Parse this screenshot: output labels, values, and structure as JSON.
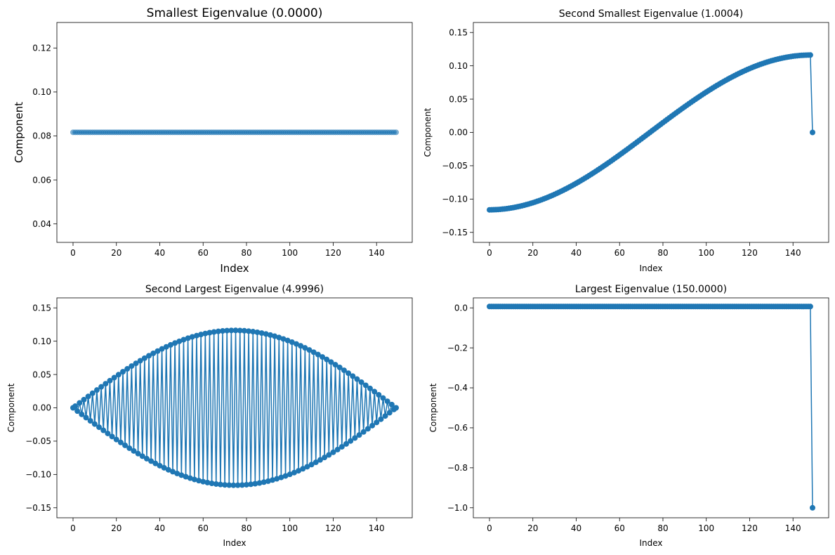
{
  "chart_data": [
    {
      "type": "line",
      "title": "Smallest Eigenvalue (0.0000)",
      "xlabel": "Index",
      "ylabel": "Component",
      "xlim": [
        -7.45,
        156.45
      ],
      "ylim": [
        0.0316,
        0.1316
      ],
      "xticks": [
        0,
        20,
        40,
        60,
        80,
        100,
        120,
        140
      ],
      "yticks": [
        0.04,
        0.06,
        0.08,
        0.1,
        0.12
      ],
      "ytick_labels": [
        "0.04",
        "0.06",
        "0.08",
        "0.10",
        "0.12"
      ],
      "line_color": "#1f77b4",
      "marker": "circle",
      "alpha": 0.6,
      "series": [
        {
          "n": 150,
          "generator": "constant",
          "value": 0.08165
        }
      ]
    },
    {
      "type": "line",
      "title": "Second Smallest Eigenvalue (1.0004)",
      "xlabel": "Index",
      "ylabel": "Component",
      "xlim": [
        -7.45,
        156.45
      ],
      "ylim": [
        -0.165,
        0.165
      ],
      "xticks": [
        0,
        20,
        40,
        60,
        80,
        100,
        120,
        140
      ],
      "yticks": [
        -0.15,
        -0.1,
        -0.05,
        0.0,
        0.05,
        0.1,
        0.15
      ],
      "ytick_labels": [
        "−0.15",
        "−0.10",
        "−0.05",
        "0.00",
        "0.05",
        "0.10",
        "0.15"
      ],
      "line_color": "#1f77b4",
      "marker": "circle",
      "alpha": 1,
      "series": [
        {
          "n": 150,
          "generator": "half-cosine",
          "amplitude": 0.1162,
          "last_value": 0.0
        }
      ]
    },
    {
      "type": "line",
      "title": "Second Largest Eigenvalue (4.9996)",
      "xlabel": "Index",
      "ylabel": "Component",
      "xlim": [
        -7.45,
        156.45
      ],
      "ylim": [
        -0.165,
        0.165
      ],
      "xticks": [
        0,
        20,
        40,
        60,
        80,
        100,
        120,
        140
      ],
      "yticks": [
        -0.15,
        -0.1,
        -0.05,
        0.0,
        0.05,
        0.1,
        0.15
      ],
      "ytick_labels": [
        "−0.15",
        "−0.10",
        "−0.05",
        "0.00",
        "0.05",
        "0.10",
        "0.15"
      ],
      "line_color": "#1f77b4",
      "marker": "circle",
      "alpha": 1,
      "series": [
        {
          "n": 150,
          "generator": "alternating-sine",
          "amplitude": 0.1162
        }
      ]
    },
    {
      "type": "line",
      "title": "Largest Eigenvalue (150.0000)",
      "xlabel": "Index",
      "ylabel": "Component",
      "xlim": [
        -7.45,
        156.45
      ],
      "ylim": [
        -1.05,
        0.05
      ],
      "xticks": [
        0,
        20,
        40,
        60,
        80,
        100,
        120,
        140
      ],
      "yticks": [
        -1.0,
        -0.8,
        -0.6,
        -0.4,
        -0.2,
        0.0
      ],
      "ytick_labels": [
        "−1.0",
        "−0.8",
        "−0.6",
        "−0.4",
        "−0.2",
        "0.0"
      ],
      "line_color": "#1f77b4",
      "marker": "circle",
      "alpha": 1,
      "series": [
        {
          "n": 150,
          "generator": "constant-then-last",
          "value": 0.0068,
          "last_value": -1.0
        }
      ]
    }
  ]
}
